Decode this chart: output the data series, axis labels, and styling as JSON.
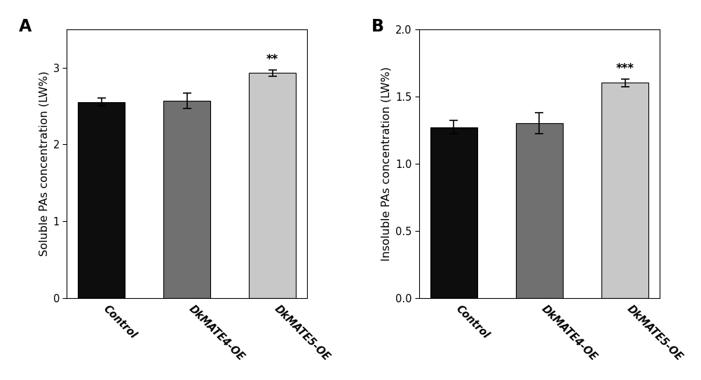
{
  "panel_A": {
    "label": "A",
    "categories": [
      "Control",
      "DkMATE4-OE",
      "DkMATE5-OE"
    ],
    "values": [
      2.55,
      2.57,
      2.93
    ],
    "errors": [
      0.05,
      0.1,
      0.04
    ],
    "bar_colors": [
      "#0d0d0d",
      "#707070",
      "#c8c8c8"
    ],
    "ylabel": "Soluble PAs concentration (LW%)",
    "ylim": [
      0,
      3.5
    ],
    "yticks": [
      0,
      1.0,
      2.0,
      3.0
    ],
    "significance": [
      "",
      "",
      "**"
    ],
    "sig_fontsize": 12
  },
  "panel_B": {
    "label": "B",
    "categories": [
      "Control",
      "DkMATE4-OE",
      "DkMATE5-OE"
    ],
    "values": [
      1.27,
      1.3,
      1.6
    ],
    "errors": [
      0.05,
      0.08,
      0.03
    ],
    "bar_colors": [
      "#0d0d0d",
      "#707070",
      "#c8c8c8"
    ],
    "ylabel": "Insoluble PAs concentration (LW%)",
    "ylim": [
      0,
      2.0
    ],
    "yticks": [
      0.0,
      0.5,
      1.0,
      1.5,
      2.0
    ],
    "significance": [
      "",
      "",
      "***"
    ],
    "sig_fontsize": 12
  },
  "figure_bg": "#ffffff",
  "bar_width": 0.55,
  "tick_fontsize": 10.5,
  "label_fontsize": 11.5,
  "panel_label_fontsize": 17,
  "edgecolor": "#000000"
}
